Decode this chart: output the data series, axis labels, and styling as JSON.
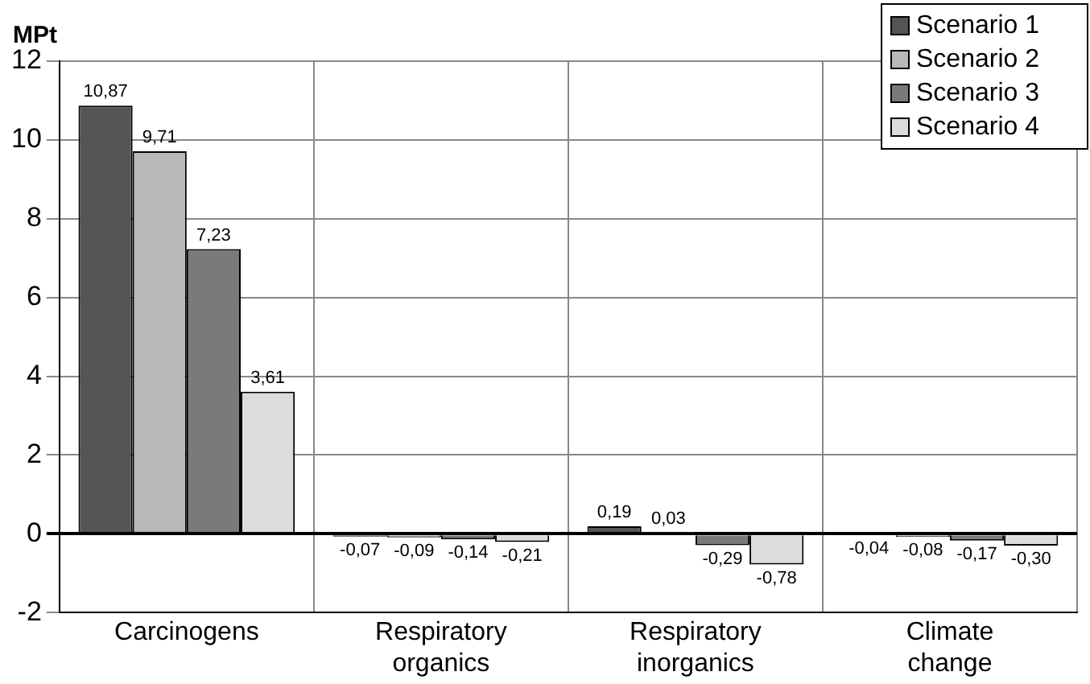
{
  "chart_data": {
    "type": "bar",
    "ylabel": "MPt",
    "categories": [
      "Carcinogens",
      "Respiratory organics",
      "Respiratory inorganics",
      "Climate change"
    ],
    "series": [
      {
        "name": "Scenario 1",
        "color": "#555555",
        "values": [
          10.87,
          -0.07,
          0.19,
          -0.04
        ],
        "value_labels": [
          "10,87",
          "-0,07",
          "0,19",
          "-0,04"
        ]
      },
      {
        "name": "Scenario 2",
        "color": "#b8b8b8",
        "values": [
          9.71,
          -0.09,
          0.03,
          -0.08
        ],
        "value_labels": [
          "9,71",
          "-0,09",
          "0,03",
          "-0,08"
        ]
      },
      {
        "name": "Scenario 3",
        "color": "#7a7a7a",
        "values": [
          7.23,
          -0.14,
          -0.29,
          -0.17
        ],
        "value_labels": [
          "7,23",
          "-0,14",
          "-0,29",
          "-0,17"
        ]
      },
      {
        "name": "Scenario 4",
        "color": "#dcdcdc",
        "values": [
          3.61,
          -0.21,
          -0.78,
          -0.3
        ],
        "value_labels": [
          "3,61",
          "-0,21",
          "-0,78",
          "-0,30"
        ]
      }
    ],
    "ylim": [
      -2,
      12
    ],
    "yticks": [
      -2,
      0,
      2,
      4,
      6,
      8,
      10,
      12
    ],
    "grid": true,
    "legend": "top right"
  }
}
